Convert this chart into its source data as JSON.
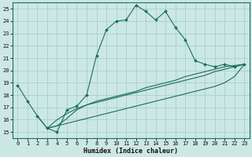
{
  "xlabel": "Humidex (Indice chaleur)",
  "xlim": [
    -0.5,
    23.5
  ],
  "ylim": [
    14.5,
    25.5
  ],
  "xticks": [
    0,
    1,
    2,
    3,
    4,
    5,
    6,
    7,
    8,
    9,
    10,
    11,
    12,
    13,
    14,
    15,
    16,
    17,
    18,
    19,
    20,
    21,
    22,
    23
  ],
  "yticks": [
    15,
    16,
    17,
    18,
    19,
    20,
    21,
    22,
    23,
    24,
    25
  ],
  "background_color": "#cce8e4",
  "grid_color": "#a8d0cc",
  "line_color": "#1a6e62",
  "main_line_x": [
    0,
    1,
    2,
    3,
    4,
    5,
    6,
    7,
    8,
    9,
    10,
    11,
    12,
    13,
    14,
    15,
    16,
    17,
    18,
    19,
    20,
    21,
    22,
    23
  ],
  "main_line_y": [
    18.8,
    17.5,
    16.3,
    15.3,
    15.0,
    16.8,
    17.1,
    18.0,
    21.2,
    23.3,
    24.0,
    24.1,
    25.3,
    24.8,
    24.1,
    24.8,
    23.5,
    22.5,
    20.8,
    20.5,
    20.3,
    20.5,
    20.3,
    20.5
  ],
  "line_a_x": [
    3,
    4,
    5,
    6,
    7,
    8,
    9,
    10,
    11,
    12,
    13,
    14,
    15,
    16,
    17,
    18,
    19,
    20,
    21,
    22,
    23
  ],
  "line_a_y": [
    15.3,
    15.5,
    15.7,
    15.9,
    16.1,
    16.3,
    16.5,
    16.7,
    16.9,
    17.1,
    17.3,
    17.5,
    17.7,
    17.9,
    18.1,
    18.3,
    18.5,
    18.7,
    19.0,
    19.5,
    20.5
  ],
  "line_b_x": [
    3,
    4,
    5,
    6,
    7,
    8,
    9,
    10,
    11,
    12,
    13,
    14,
    15,
    16,
    17,
    18,
    19,
    20,
    21,
    22,
    23
  ],
  "line_b_y": [
    15.3,
    16.0,
    16.5,
    16.9,
    17.2,
    17.4,
    17.6,
    17.8,
    18.0,
    18.2,
    18.4,
    18.6,
    18.8,
    19.0,
    19.2,
    19.4,
    19.6,
    19.9,
    20.1,
    20.3,
    20.5
  ],
  "line_c_x": [
    2,
    3,
    4,
    5,
    6,
    7,
    8,
    9,
    10,
    11,
    12,
    13,
    14,
    15,
    16,
    17,
    18,
    19,
    20,
    21,
    22,
    23
  ],
  "line_c_y": [
    16.3,
    15.3,
    15.5,
    16.1,
    16.8,
    17.2,
    17.5,
    17.7,
    17.9,
    18.1,
    18.3,
    18.6,
    18.8,
    19.0,
    19.2,
    19.5,
    19.7,
    19.9,
    20.1,
    20.3,
    20.4,
    20.5
  ]
}
